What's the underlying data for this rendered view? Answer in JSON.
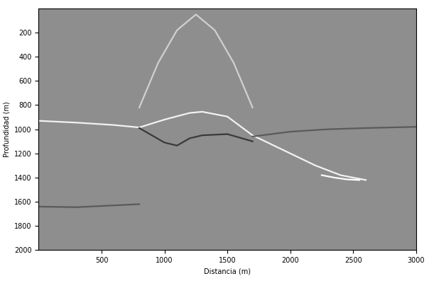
{
  "chart_data": {
    "type": "line",
    "x_label": "Distancia (m)",
    "y_label": "Profundidad (m)",
    "xlim": [
      0,
      3000
    ],
    "ylim": [
      2000,
      0
    ],
    "xticks": [
      500,
      1000,
      1500,
      2000,
      2500,
      3000
    ],
    "yticks": [
      200,
      400,
      600,
      800,
      1000,
      1200,
      1400,
      1600,
      1800,
      2000
    ],
    "grid": false,
    "tick_labels": true,
    "series": [
      {
        "color": "#f2f2f2",
        "line_style": "solid",
        "x": [
          0,
          300,
          600,
          800,
          1000,
          1200,
          1300,
          1500,
          1700,
          1800,
          2000,
          2200,
          2400,
          2600
        ],
        "values": [
          930,
          945,
          965,
          985,
          920,
          865,
          855,
          895,
          1050,
          1100,
          1200,
          1300,
          1380,
          1420
        ]
      },
      {
        "color": "#3a3a3a",
        "line_style": "solid",
        "x": [
          800,
          900,
          1000,
          1100,
          1200,
          1300,
          1500,
          1700
        ],
        "values": [
          990,
          1050,
          1110,
          1135,
          1075,
          1050,
          1040,
          1100
        ]
      },
      {
        "color": "#5a5a5a",
        "line_style": "solid",
        "x": [
          1700,
          2000,
          2300,
          2600,
          3000
        ],
        "values": [
          1060,
          1020,
          1000,
          990,
          980
        ]
      },
      {
        "color": "#5a5a5a",
        "line_style": "solid",
        "x": [
          0,
          300,
          600,
          800
        ],
        "values": [
          1640,
          1645,
          1630,
          1620
        ]
      },
      {
        "color": "#d0d0d0",
        "line_style": "solid",
        "x": [
          800,
          950,
          1100,
          1250,
          1400,
          1550,
          1700
        ],
        "values": [
          820,
          450,
          180,
          50,
          180,
          450,
          820
        ]
      },
      {
        "color": "#ffffff",
        "line_style": "solid",
        "x": [
          2250,
          2350,
          2450,
          2550
        ],
        "values": [
          1380,
          1400,
          1415,
          1420
        ]
      }
    ]
  }
}
